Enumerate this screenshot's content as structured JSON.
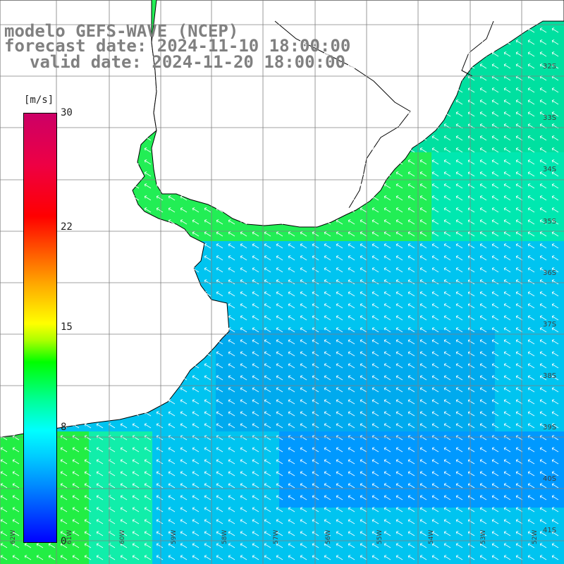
{
  "title": {
    "line1": "modelo GEFS-WAVE (NCEP)",
    "line2": "forecast date: 2024-11-10 18:00:00",
    "line3": "valid date: 2024-11-20 18:00:00"
  },
  "legend": {
    "unit": "[m/s]",
    "ticks": [
      "30",
      "22",
      "15",
      "8",
      "0"
    ],
    "tick_values": [
      30,
      22,
      15,
      8,
      0
    ],
    "colors": [
      "#0000ff",
      "#00aaff",
      "#00ffff",
      "#00ff80",
      "#00ff00",
      "#aaff00",
      "#ffff00",
      "#ff8000",
      "#ff0000",
      "#cc0066"
    ]
  },
  "grid": {
    "lat_labels": [
      "32S",
      "33S",
      "34S",
      "35S",
      "36S",
      "37S",
      "38S",
      "39S",
      "40S",
      "41S"
    ],
    "lon_labels": [
      "62W",
      "61W",
      "60W",
      "59W",
      "58W",
      "57W",
      "56W",
      "55W",
      "54W",
      "53W",
      "52W"
    ]
  },
  "wind": {
    "speed_range_ms": [
      0,
      30
    ],
    "typical_open_sea_ms": 7,
    "coastal_ms": 11,
    "arrow_direction": "toward northwest"
  }
}
